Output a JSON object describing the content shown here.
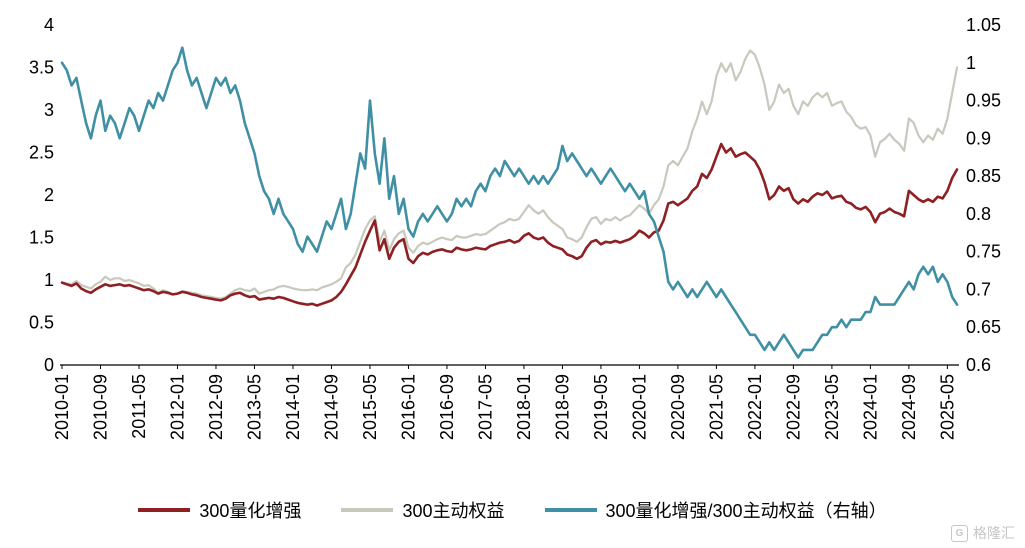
{
  "chart_data": {
    "type": "line",
    "title": "",
    "grid": false,
    "legend_position": "bottom",
    "x_start": "2010-01",
    "x_step_months": 1,
    "x_tick_step_points": 8,
    "x_tick_labels": [
      "2010-01",
      "2010-09",
      "2011-05",
      "2012-01",
      "2012-09",
      "2013-05",
      "2014-01",
      "2014-09",
      "2015-05",
      "2016-01",
      "2016-09",
      "2017-05",
      "2018-01",
      "2018-09",
      "2019-05",
      "2020-01",
      "2020-09",
      "2021-05",
      "2022-01",
      "2022-09",
      "2023-05",
      "2024-01",
      "2024-09",
      "2025-05"
    ],
    "left_axis": {
      "min": 0,
      "max": 4,
      "step": 0.5
    },
    "right_axis": {
      "min": 0.6,
      "max": 1.05,
      "step": 0.05
    },
    "series": [
      {
        "name": "300量化增强",
        "color": "#8e1f22",
        "axis": "left",
        "values": [
          0.97,
          0.95,
          0.93,
          0.96,
          0.9,
          0.87,
          0.85,
          0.89,
          0.92,
          0.95,
          0.93,
          0.94,
          0.95,
          0.93,
          0.94,
          0.92,
          0.9,
          0.88,
          0.89,
          0.87,
          0.84,
          0.86,
          0.85,
          0.83,
          0.84,
          0.86,
          0.85,
          0.83,
          0.82,
          0.8,
          0.79,
          0.78,
          0.77,
          0.76,
          0.78,
          0.82,
          0.84,
          0.85,
          0.82,
          0.8,
          0.81,
          0.77,
          0.78,
          0.79,
          0.78,
          0.8,
          0.79,
          0.77,
          0.75,
          0.73,
          0.72,
          0.71,
          0.72,
          0.7,
          0.72,
          0.74,
          0.76,
          0.8,
          0.86,
          0.95,
          1.05,
          1.15,
          1.3,
          1.45,
          1.58,
          1.7,
          1.35,
          1.48,
          1.25,
          1.38,
          1.45,
          1.48,
          1.25,
          1.2,
          1.28,
          1.32,
          1.3,
          1.33,
          1.35,
          1.36,
          1.34,
          1.33,
          1.38,
          1.36,
          1.35,
          1.36,
          1.38,
          1.37,
          1.36,
          1.4,
          1.42,
          1.44,
          1.45,
          1.47,
          1.44,
          1.46,
          1.52,
          1.55,
          1.5,
          1.48,
          1.5,
          1.44,
          1.4,
          1.38,
          1.36,
          1.3,
          1.28,
          1.25,
          1.28,
          1.38,
          1.45,
          1.47,
          1.42,
          1.45,
          1.44,
          1.46,
          1.44,
          1.46,
          1.48,
          1.52,
          1.58,
          1.55,
          1.5,
          1.56,
          1.58,
          1.7,
          1.9,
          1.92,
          1.88,
          1.92,
          1.96,
          2.05,
          2.1,
          2.25,
          2.2,
          2.3,
          2.45,
          2.6,
          2.5,
          2.55,
          2.45,
          2.48,
          2.5,
          2.45,
          2.4,
          2.3,
          2.15,
          1.95,
          2.0,
          2.1,
          2.05,
          2.08,
          1.95,
          1.9,
          1.95,
          1.92,
          1.98,
          2.02,
          2.0,
          2.04,
          1.96,
          1.98,
          1.99,
          1.92,
          1.9,
          1.85,
          1.83,
          1.86,
          1.8,
          1.68,
          1.78,
          1.8,
          1.84,
          1.8,
          1.78,
          1.75,
          2.05,
          2.0,
          1.95,
          1.92,
          1.95,
          1.92,
          1.98,
          1.96,
          2.05,
          2.2,
          2.3
        ]
      },
      {
        "name": "300主动权益",
        "color": "#c8c8bc",
        "axis": "left",
        "values": [
          0.97,
          0.96,
          0.95,
          0.99,
          0.94,
          0.92,
          0.9,
          0.95,
          0.98,
          1.04,
          1.0,
          1.02,
          1.02,
          0.99,
          1.0,
          0.98,
          0.96,
          0.93,
          0.94,
          0.9,
          0.85,
          0.88,
          0.86,
          0.83,
          0.84,
          0.87,
          0.86,
          0.85,
          0.84,
          0.82,
          0.81,
          0.8,
          0.79,
          0.78,
          0.8,
          0.84,
          0.88,
          0.9,
          0.88,
          0.87,
          0.9,
          0.84,
          0.86,
          0.88,
          0.89,
          0.92,
          0.93,
          0.92,
          0.9,
          0.89,
          0.88,
          0.88,
          0.89,
          0.88,
          0.91,
          0.93,
          0.95,
          0.98,
          1.02,
          1.15,
          1.2,
          1.3,
          1.45,
          1.6,
          1.7,
          1.75,
          1.45,
          1.58,
          1.35,
          1.48,
          1.55,
          1.58,
          1.38,
          1.32,
          1.4,
          1.44,
          1.42,
          1.45,
          1.48,
          1.5,
          1.48,
          1.47,
          1.52,
          1.5,
          1.5,
          1.52,
          1.54,
          1.53,
          1.54,
          1.58,
          1.62,
          1.66,
          1.68,
          1.72,
          1.7,
          1.72,
          1.8,
          1.88,
          1.82,
          1.78,
          1.82,
          1.74,
          1.68,
          1.64,
          1.6,
          1.5,
          1.48,
          1.45,
          1.5,
          1.62,
          1.72,
          1.74,
          1.66,
          1.72,
          1.7,
          1.74,
          1.7,
          1.74,
          1.76,
          1.82,
          1.88,
          1.84,
          1.78,
          1.88,
          1.95,
          2.1,
          2.35,
          2.4,
          2.35,
          2.45,
          2.55,
          2.75,
          2.9,
          3.1,
          2.95,
          3.1,
          3.4,
          3.55,
          3.45,
          3.55,
          3.35,
          3.45,
          3.6,
          3.7,
          3.65,
          3.5,
          3.3,
          3.0,
          3.1,
          3.3,
          3.2,
          3.25,
          3.05,
          2.95,
          3.1,
          3.05,
          3.15,
          3.2,
          3.15,
          3.2,
          3.05,
          3.08,
          3.1,
          2.98,
          2.92,
          2.82,
          2.78,
          2.8,
          2.7,
          2.45,
          2.62,
          2.66,
          2.72,
          2.65,
          2.6,
          2.52,
          2.9,
          2.85,
          2.7,
          2.62,
          2.7,
          2.65,
          2.78,
          2.72,
          2.9,
          3.2,
          3.5
        ]
      },
      {
        "name": "300量化增强/300主动权益（右轴）",
        "color": "#4090a5",
        "axis": "right",
        "values": [
          1.0,
          0.99,
          0.97,
          0.98,
          0.95,
          0.92,
          0.9,
          0.93,
          0.95,
          0.91,
          0.93,
          0.92,
          0.9,
          0.92,
          0.94,
          0.93,
          0.91,
          0.93,
          0.95,
          0.94,
          0.96,
          0.95,
          0.97,
          0.99,
          1.0,
          1.02,
          0.99,
          0.97,
          0.98,
          0.96,
          0.94,
          0.96,
          0.98,
          0.97,
          0.98,
          0.96,
          0.97,
          0.95,
          0.92,
          0.9,
          0.88,
          0.85,
          0.83,
          0.82,
          0.8,
          0.82,
          0.8,
          0.79,
          0.78,
          0.76,
          0.75,
          0.77,
          0.76,
          0.75,
          0.77,
          0.79,
          0.78,
          0.8,
          0.82,
          0.78,
          0.8,
          0.84,
          0.88,
          0.86,
          0.95,
          0.88,
          0.84,
          0.9,
          0.82,
          0.85,
          0.8,
          0.82,
          0.78,
          0.77,
          0.79,
          0.8,
          0.79,
          0.8,
          0.81,
          0.8,
          0.79,
          0.8,
          0.82,
          0.81,
          0.82,
          0.81,
          0.83,
          0.84,
          0.83,
          0.85,
          0.86,
          0.85,
          0.87,
          0.86,
          0.85,
          0.86,
          0.85,
          0.84,
          0.85,
          0.84,
          0.85,
          0.84,
          0.85,
          0.86,
          0.89,
          0.87,
          0.88,
          0.87,
          0.86,
          0.85,
          0.86,
          0.85,
          0.84,
          0.85,
          0.86,
          0.85,
          0.84,
          0.83,
          0.84,
          0.83,
          0.82,
          0.83,
          0.8,
          0.79,
          0.77,
          0.75,
          0.71,
          0.7,
          0.71,
          0.7,
          0.69,
          0.7,
          0.69,
          0.7,
          0.71,
          0.7,
          0.69,
          0.7,
          0.69,
          0.68,
          0.67,
          0.66,
          0.65,
          0.64,
          0.64,
          0.63,
          0.62,
          0.63,
          0.62,
          0.63,
          0.64,
          0.63,
          0.62,
          0.61,
          0.62,
          0.62,
          0.62,
          0.63,
          0.64,
          0.64,
          0.65,
          0.65,
          0.66,
          0.65,
          0.66,
          0.66,
          0.66,
          0.67,
          0.67,
          0.69,
          0.68,
          0.68,
          0.68,
          0.68,
          0.69,
          0.7,
          0.71,
          0.7,
          0.72,
          0.73,
          0.72,
          0.73,
          0.71,
          0.72,
          0.71,
          0.69,
          0.68
        ]
      }
    ]
  },
  "watermark": {
    "logo_letter": "G",
    "text": "格隆汇"
  }
}
